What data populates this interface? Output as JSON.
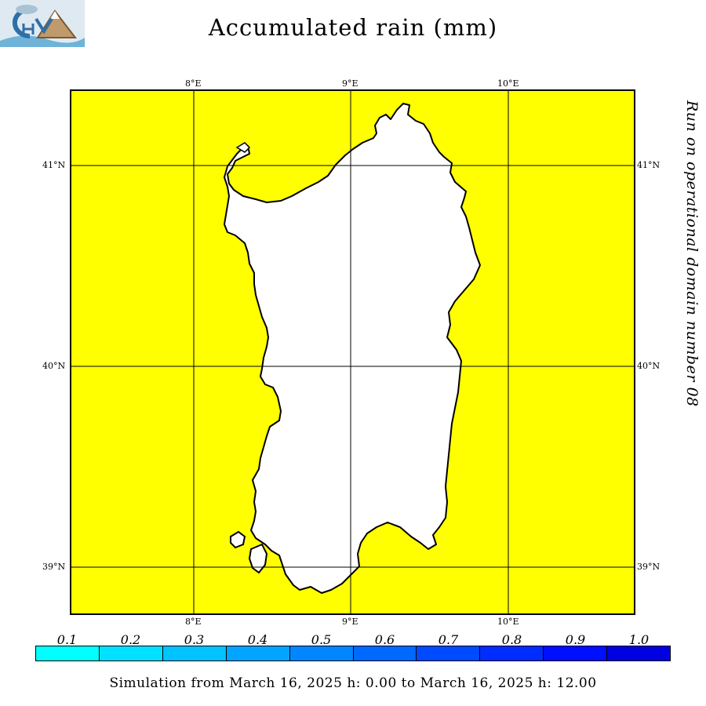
{
  "title": "Accumulated rain (mm)",
  "side_note": "Run on operational domain number 08",
  "footer": "Simulation from March 16, 2025 h: 0.00 to March 16, 2025 h: 12.00",
  "logo": {
    "icon": "chym-logo-icon"
  },
  "lon_labels": [
    "8°E",
    "9°E",
    "10°E"
  ],
  "lat_labels": [
    "41°N",
    "40°N",
    "39°N"
  ],
  "colors": {
    "sea": "#ffff00",
    "land": "#ffffff",
    "coast": "#000000",
    "grid": "#000000"
  },
  "legend": {
    "labels": [
      "0.1",
      "0.2",
      "0.3",
      "0.4",
      "0.5",
      "0.6",
      "0.7",
      "0.8",
      "0.9",
      "1.0"
    ],
    "colors": [
      "#00ffff",
      "#00e1ff",
      "#00c3ff",
      "#00a5ff",
      "#0087ff",
      "#0069ff",
      "#004bff",
      "#002dff",
      "#000fff",
      "#0000e0"
    ]
  }
}
